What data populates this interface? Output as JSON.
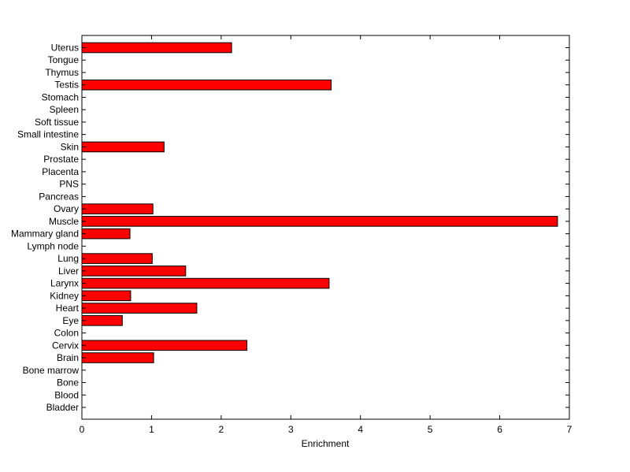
{
  "chart_data": {
    "type": "bar",
    "orientation": "horizontal",
    "xlabel": "Enrichment",
    "ylabel": "",
    "title": "",
    "xlim": [
      0,
      7
    ],
    "x_ticks": [
      0,
      1,
      2,
      3,
      4,
      5,
      6,
      7
    ],
    "grid": false,
    "bar_color": "#ff0000",
    "bar_edge_color": "#000000",
    "categories": [
      "Bladder",
      "Blood",
      "Bone",
      "Bone marrow",
      "Brain",
      "Cervix",
      "Colon",
      "Eye",
      "Heart",
      "Kidney",
      "Larynx",
      "Liver",
      "Lung",
      "Lymph node",
      "Mammary gland",
      "Muscle",
      "Ovary",
      "Pancreas",
      "PNS",
      "Placenta",
      "Prostate",
      "Skin",
      "Small intestine",
      "Soft tissue",
      "Spleen",
      "Stomach",
      "Testis",
      "Thymus",
      "Tongue",
      "Uterus"
    ],
    "values": [
      0,
      0,
      0,
      0,
      1.03,
      2.37,
      0,
      0.58,
      1.65,
      0.7,
      3.55,
      1.49,
      1.01,
      0,
      0.69,
      6.83,
      1.02,
      0,
      0,
      0,
      0,
      1.18,
      0,
      0,
      0,
      0,
      3.58,
      0,
      0,
      2.15
    ]
  }
}
